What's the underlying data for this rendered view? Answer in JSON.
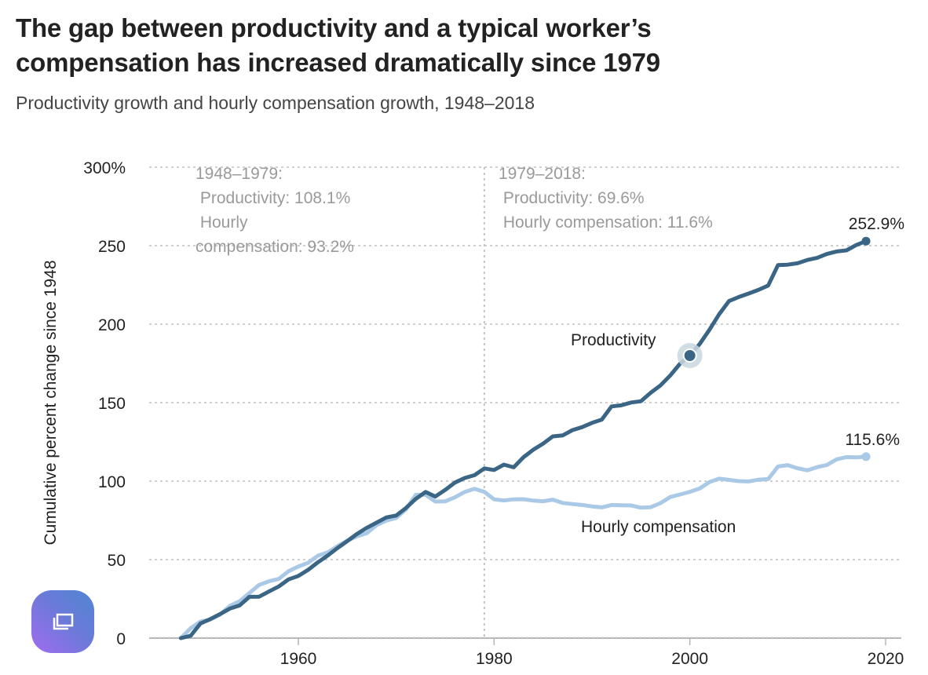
{
  "header": {
    "title_line1": "The gap between productivity and a typical worker’s",
    "title_line2": "compensation has increased dramatically since 1979",
    "subtitle": "Productivity growth and hourly compensation growth, 1948–2018"
  },
  "colors": {
    "productivity": "#3a6585",
    "compensation": "#a9c9e6",
    "grid": "#cfcfcf",
    "annotation": "#9a9a9a"
  },
  "chart_data": {
    "type": "line",
    "title": "The gap between productivity and a typical worker’s compensation has increased dramatically since 1979",
    "subtitle": "Productivity growth and hourly compensation growth, 1948–2018",
    "xlabel": "",
    "ylabel": "Cumulative percent change since 1948",
    "xlim": [
      1945,
      2021
    ],
    "ylim": [
      0,
      300
    ],
    "x_ticks": [
      {
        "value": 1960,
        "label": "1960"
      },
      {
        "value": 1980,
        "label": "1980"
      },
      {
        "value": 2000,
        "label": "2000"
      },
      {
        "value": 2020,
        "label": "2020"
      }
    ],
    "y_ticks": [
      {
        "value": 0,
        "label": "0"
      },
      {
        "value": 50,
        "label": "50"
      },
      {
        "value": 100,
        "label": "100"
      },
      {
        "value": 150,
        "label": "150"
      },
      {
        "value": 200,
        "label": "200"
      },
      {
        "value": 250,
        "label": "250"
      },
      {
        "value": 300,
        "label": "300%"
      }
    ],
    "grid": true,
    "reference_line": {
      "x": 1979
    },
    "x": [
      1948,
      1949,
      1950,
      1951,
      1952,
      1953,
      1954,
      1955,
      1956,
      1957,
      1958,
      1959,
      1960,
      1961,
      1962,
      1963,
      1964,
      1965,
      1966,
      1967,
      1968,
      1969,
      1970,
      1971,
      1972,
      1973,
      1974,
      1975,
      1976,
      1977,
      1978,
      1979,
      1980,
      1981,
      1982,
      1983,
      1984,
      1985,
      1986,
      1987,
      1988,
      1989,
      1990,
      1991,
      1992,
      1993,
      1994,
      1995,
      1996,
      1997,
      1998,
      1999,
      2000,
      2001,
      2002,
      2003,
      2004,
      2005,
      2006,
      2007,
      2008,
      2009,
      2010,
      2011,
      2012,
      2013,
      2014,
      2015,
      2016,
      2017,
      2018
    ],
    "series": [
      {
        "name": "Productivity",
        "label": "Productivity",
        "end_label": "252.9%",
        "values": [
          0,
          1.5,
          9.3,
          12.1,
          15.3,
          18.8,
          20.8,
          26.3,
          26.4,
          29.7,
          32.9,
          37.4,
          39.6,
          43.5,
          48.3,
          52.6,
          57.4,
          61.8,
          66.4,
          70.3,
          73.6,
          76.9,
          78.1,
          82.9,
          88.7,
          93.1,
          90.2,
          94.4,
          99.1,
          102,
          103.8,
          108.1,
          107.1,
          110.5,
          108.8,
          115.2,
          120,
          123.9,
          128.5,
          129.1,
          132.5,
          134.4,
          137.1,
          139.2,
          147.6,
          148.3,
          150.1,
          150.9,
          156.3,
          161,
          167.3,
          174.8,
          180,
          187.3,
          196.4,
          206.4,
          214.7,
          217.3,
          219.5,
          221.8,
          224.6,
          237.6,
          237.9,
          238.8,
          240.9,
          242.2,
          244.7,
          246.3,
          247,
          250.4,
          252.9
        ]
      },
      {
        "name": "Hourly compensation",
        "label": "Hourly compensation",
        "end_label": "115.6%",
        "values": [
          0,
          6.3,
          10.5,
          11.8,
          15,
          20.5,
          23.5,
          28.7,
          33.9,
          36.2,
          37.7,
          42.6,
          45.6,
          48,
          52.5,
          54.6,
          58.6,
          62.1,
          64.9,
          66.9,
          72,
          74.9,
          76.6,
          82,
          91.3,
          91.3,
          87,
          87.1,
          89.7,
          93.1,
          95.1,
          93.2,
          88.4,
          87.7,
          88.4,
          88.5,
          87.6,
          87.2,
          88.2,
          86.1,
          85.4,
          84.8,
          83.9,
          83.3,
          84.8,
          84.6,
          84.5,
          83.1,
          83.4,
          86,
          89.9,
          91.5,
          93.2,
          95.3,
          99.4,
          101.6,
          100.8,
          100,
          99.8,
          100.9,
          101.3,
          109.3,
          110.2,
          108.2,
          106.9,
          108.9,
          110.3,
          113.9,
          115.3,
          115.1,
          115.6
        ]
      }
    ],
    "highlight_point": {
      "series": "Productivity",
      "x": 2000,
      "y": 180
    },
    "annotations": [
      {
        "lines": [
          "1948–1979:",
          " Productivity: 108.1%",
          " Hourly",
          "compensation: 93.2%"
        ]
      },
      {
        "lines": [
          "1979–2018:",
          " Productivity: 69.6%",
          " Hourly compensation: 11.6%"
        ]
      }
    ],
    "legend": "inline-labels"
  },
  "fab": {
    "icon": "copy-window-icon"
  }
}
